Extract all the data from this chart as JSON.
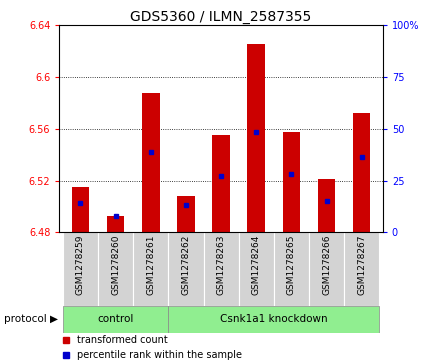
{
  "title": "GDS5360 / ILMN_2587355",
  "samples": [
    "GSM1278259",
    "GSM1278260",
    "GSM1278261",
    "GSM1278262",
    "GSM1278263",
    "GSM1278264",
    "GSM1278265",
    "GSM1278267"
  ],
  "samples_full": [
    "GSM1278259",
    "GSM1278260",
    "GSM1278261",
    "GSM1278262",
    "GSM1278263",
    "GSM1278264",
    "GSM1278265",
    "GSM1278266",
    "GSM1278267"
  ],
  "bar_values": [
    6.515,
    6.493,
    6.588,
    6.508,
    6.555,
    6.626,
    6.558,
    6.521,
    6.572
  ],
  "bar_base": 6.48,
  "blue_values": [
    6.503,
    6.493,
    6.542,
    6.501,
    6.524,
    6.558,
    6.525,
    6.504,
    6.538
  ],
  "ylim_left": [
    6.48,
    6.64
  ],
  "ylim_right": [
    0,
    100
  ],
  "yticks_left": [
    6.48,
    6.52,
    6.56,
    6.6,
    6.64
  ],
  "yticks_right": [
    0,
    25,
    50,
    75,
    100
  ],
  "bar_color": "#cc0000",
  "blue_color": "#0000cc",
  "protocol_groups": [
    {
      "label": "control",
      "start": 0,
      "end": 2
    },
    {
      "label": "Csnk1a1 knockdown",
      "start": 3,
      "end": 8
    }
  ],
  "protocol_label": "protocol",
  "legend_items": [
    {
      "color": "#cc0000",
      "label": "transformed count"
    },
    {
      "color": "#0000cc",
      "label": "percentile rank within the sample"
    }
  ],
  "group_bg_color": "#90ee90",
  "sample_cell_color": "#d3d3d3",
  "title_fontsize": 10,
  "tick_fontsize": 7,
  "label_fontsize": 7.5,
  "sample_fontsize": 6.5
}
